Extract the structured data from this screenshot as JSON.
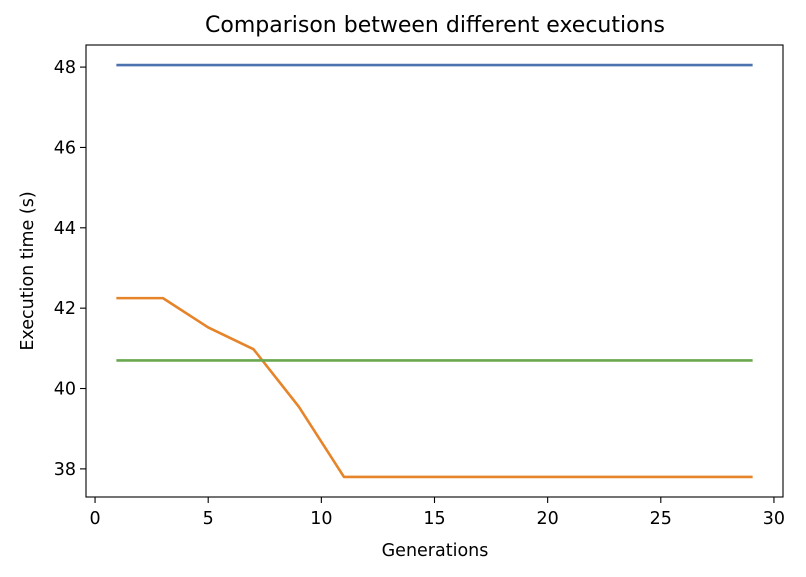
{
  "chart_data": {
    "type": "line",
    "title": "Comparison between different executions",
    "xlabel": "Generations",
    "ylabel": "Execution time (s)",
    "xlim": [
      -0.4,
      30.4
    ],
    "ylim": [
      37.3,
      48.55
    ],
    "xticks": [
      0,
      5,
      10,
      15,
      20,
      25,
      30
    ],
    "yticks": [
      38,
      40,
      42,
      44,
      46,
      48
    ],
    "grid": false,
    "series": [
      {
        "color": "#4c72b0",
        "x": [
          1,
          29
        ],
        "y": [
          48.05,
          48.05
        ]
      },
      {
        "color": "#e6842a",
        "x": [
          1,
          3,
          5,
          7,
          9,
          11,
          13,
          15,
          17,
          19,
          21,
          23,
          25,
          27,
          29
        ],
        "y": [
          42.25,
          42.25,
          41.52,
          40.98,
          39.55,
          37.8,
          37.8,
          37.8,
          37.8,
          37.8,
          37.8,
          37.8,
          37.8,
          37.8,
          37.8
        ]
      },
      {
        "color": "#6aa84f",
        "x": [
          1,
          29
        ],
        "y": [
          40.7,
          40.7
        ]
      }
    ]
  }
}
